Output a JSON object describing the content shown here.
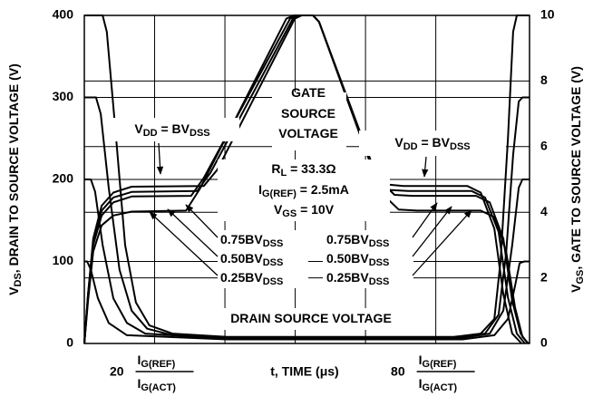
{
  "chart_data": {
    "type": "line",
    "xlabel": "t, TIME (μs)",
    "xlim": [
      5,
      100
    ],
    "xticks": [
      20,
      {
        "value": 35,
        "label": null
      },
      {
        "value": 50,
        "label": null
      },
      {
        "value": 65,
        "label": null
      },
      80
    ],
    "xtick_unit": {
      "numerator": [
        "I",
        "G(REF)"
      ],
      "denominator": [
        "I",
        "G(ACT)"
      ]
    },
    "ylabel": [
      "V",
      "DS",
      ", DRAIN TO SOURCE VOLTAGE (V)"
    ],
    "ylim": [
      0,
      400
    ],
    "yticks": [
      0,
      100,
      200,
      300,
      400
    ],
    "y2label": [
      "V",
      "GS",
      ", GATE TO SOURCE VOLTAGE (V)"
    ],
    "y2lim": [
      0,
      10
    ],
    "y2ticks": [
      0,
      2,
      4,
      6,
      8,
      10
    ],
    "grid": true,
    "color": "#000000",
    "series": [
      {
        "axis": "y",
        "x": [
          5.0,
          8.9,
          9.8,
          11.8,
          13.7,
          16.0,
          18.9,
          23.8,
          35.4,
          83.8,
          89.6,
          92.5,
          93.8,
          95.4,
          96.5,
          97.3,
          100
        ],
        "values": [
          400,
          400,
          380,
          250,
          120,
          50,
          22,
          12,
          8,
          8,
          12,
          30,
          100,
          250,
          380,
          400,
          400
        ]
      },
      {
        "axis": "y",
        "x": [
          5.0,
          7.5,
          8.5,
          10.2,
          12.5,
          15.1,
          18.4,
          23.8,
          35.4,
          83.8,
          90.5,
          93.4,
          95.0,
          96.5,
          97.7,
          98.5,
          100
        ],
        "values": [
          300,
          300,
          280,
          190,
          90,
          40,
          18,
          10,
          7,
          7,
          12,
          35,
          110,
          230,
          295,
          300,
          300
        ]
      },
      {
        "axis": "y",
        "x": [
          5.0,
          6.4,
          7.3,
          8.9,
          11.2,
          14.1,
          18.0,
          35.4,
          84.7,
          91.5,
          94.4,
          96.3,
          97.7,
          98.5,
          100
        ],
        "values": [
          200,
          200,
          185,
          120,
          55,
          25,
          12,
          6,
          6,
          12,
          40,
          120,
          190,
          200,
          200
        ]
      },
      {
        "axis": "y",
        "x": [
          5.0,
          5.6,
          6.4,
          7.9,
          10.2,
          14.1,
          35.4,
          85.7,
          92.5,
          95.4,
          96.9,
          97.9,
          98.9,
          100
        ],
        "values": [
          100,
          100,
          90,
          55,
          25,
          10,
          5,
          5,
          10,
          30,
          70,
          98,
          100,
          100
        ]
      },
      {
        "axis": "y2",
        "x": [
          5.0,
          5.8,
          6.9,
          8.7,
          11.2,
          15.1,
          30.5,
          33.4,
          49.9,
          51.4,
          53.8,
          55.1,
          66.3,
          69.2,
          73.1,
          86.7,
          89.6,
          92.5,
          94.4,
          96.3,
          98.3
        ],
        "values": [
          0,
          1.5,
          3.2,
          4.2,
          4.6,
          4.78,
          4.8,
          5.3,
          9.9,
          10,
          10,
          9.8,
          5.4,
          4.85,
          4.8,
          4.8,
          4.6,
          3.5,
          1.5,
          0.3,
          0
        ]
      },
      {
        "axis": "y2",
        "x": [
          5.0,
          5.8,
          6.9,
          8.7,
          11.2,
          15.1,
          29.1,
          31.9,
          49.5,
          50.9,
          53.8,
          55.1,
          66.9,
          70.2,
          74.1,
          87.6,
          90.5,
          93.4,
          95.4,
          97.3,
          99.0
        ],
        "values": [
          0,
          1.5,
          3.1,
          4.05,
          4.45,
          4.62,
          4.65,
          5.2,
          9.9,
          10,
          10,
          9.8,
          5.2,
          4.68,
          4.65,
          4.65,
          4.45,
          3.4,
          1.4,
          0.3,
          0
        ]
      },
      {
        "axis": "y2",
        "x": [
          5.0,
          5.8,
          6.9,
          8.7,
          11.2,
          15.1,
          27.8,
          30.5,
          48.9,
          50.3,
          53.8,
          55.1,
          67.5,
          71.2,
          75.0,
          88.6,
          91.5,
          94.4,
          96.3,
          98.1,
          99.6
        ],
        "values": [
          0,
          1.4,
          3.0,
          3.9,
          4.3,
          4.48,
          4.5,
          5.05,
          9.9,
          10,
          10,
          9.8,
          5.05,
          4.53,
          4.5,
          4.5,
          4.3,
          3.2,
          1.3,
          0.3,
          0
        ]
      },
      {
        "axis": "y2",
        "x": [
          5.0,
          5.8,
          6.9,
          8.7,
          11.2,
          15.1,
          26.7,
          29.6,
          48.1,
          49.7,
          53.8,
          55.1,
          68.3,
          72.1,
          76.0,
          89.6,
          92.5,
          95.0,
          96.9,
          98.5,
          99.8
        ],
        "values": [
          0,
          1.3,
          2.8,
          3.6,
          3.9,
          4.02,
          4.05,
          4.7,
          9.9,
          10,
          10,
          9.8,
          4.6,
          4.08,
          4.05,
          4.05,
          3.85,
          2.8,
          1.1,
          0.2,
          0
        ]
      }
    ],
    "annotations": [
      [
        "GATE"
      ],
      [
        "SOURCE"
      ],
      [
        "VOLTAGE"
      ],
      [
        "R",
        "L",
        " = 33.3Ω"
      ],
      [
        "I",
        "G(REF)",
        " = 2.5mA"
      ],
      [
        "V",
        "GS",
        " = 10V"
      ],
      [
        "DRAIN SOURCE VOLTAGE"
      ],
      [
        "V",
        "DD",
        " = BV",
        "DSS"
      ],
      [
        "0.75BV",
        "DSS"
      ],
      [
        "0.50BV",
        "DSS"
      ],
      [
        "0.25BV",
        "DSS"
      ],
      [
        "V",
        "DD",
        " = BV",
        "DSS"
      ],
      [
        "0.75BV",
        "DSS"
      ],
      [
        "0.50BV",
        "DSS"
      ],
      [
        "0.25BV",
        "DSS"
      ]
    ]
  }
}
